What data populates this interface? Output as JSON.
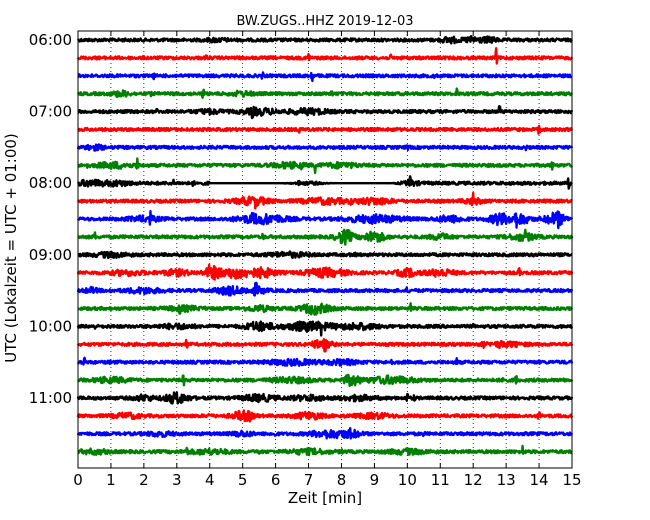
{
  "chart_data": {
    "type": "line",
    "title": "BW.ZUGS..HHZ 2019-12-03",
    "xlabel": "Zeit  [min]",
    "ylabel": "UTC (Lokalzeit = UTC + 01:00)",
    "xlim": [
      0,
      15
    ],
    "x_ticks": [
      0,
      1,
      2,
      3,
      4,
      5,
      6,
      7,
      8,
      9,
      10,
      11,
      12,
      13,
      14,
      15
    ],
    "y_tick_labels": [
      "06:00",
      "07:00",
      "08:00",
      "09:00",
      "10:00",
      "11:00"
    ],
    "grid": "vertical dotted at every minute",
    "colors": [
      "#000000",
      "#ff0000",
      "#0000ff",
      "#008000"
    ],
    "traces": [
      {
        "label": "06:00",
        "color": "#000000",
        "base": 0.06,
        "bursts": [
          [
            11.3,
            0.25,
            1.6
          ],
          [
            12.0,
            0.25,
            1.8
          ],
          [
            12.5,
            0.2,
            1.4
          ],
          [
            4.2,
            0.3,
            0.9
          ]
        ],
        "spikes": []
      },
      {
        "label": "06:15",
        "color": "#ff0000",
        "base": 0.05,
        "bursts": [],
        "spikes": [
          [
            7.0,
            5.0
          ],
          [
            12.7,
            5.5
          ],
          [
            3.9,
            1.5
          ],
          [
            9.5,
            1.2
          ]
        ]
      },
      {
        "label": "06:30",
        "color": "#0000ff",
        "base": 0.05,
        "bursts": [],
        "spikes": [
          [
            7.1,
            5.5
          ],
          [
            5.6,
            2.0
          ],
          [
            2.3,
            1.2
          ],
          [
            10.8,
            1.2
          ]
        ]
      },
      {
        "label": "06:45",
        "color": "#008000",
        "base": 0.06,
        "bursts": [
          [
            1.3,
            0.25,
            1.5
          ],
          [
            5.0,
            0.3,
            1.3
          ]
        ],
        "spikes": [
          [
            3.8,
            4.5
          ],
          [
            11.5,
            4.0
          ],
          [
            7.7,
            1.5
          ],
          [
            2.2,
            1.2
          ],
          [
            12.8,
            1.2
          ]
        ]
      },
      {
        "label": "07:00",
        "color": "#000000",
        "base": 0.07,
        "bursts": [
          [
            5.5,
            0.5,
            1.8
          ],
          [
            7.0,
            0.6,
            1.5
          ],
          [
            4.0,
            0.4,
            1.1
          ]
        ],
        "spikes": [
          [
            5.3,
            3.5
          ],
          [
            12.8,
            4.0
          ],
          [
            2.4,
            1.2
          ]
        ]
      },
      {
        "label": "07:15",
        "color": "#ff0000",
        "base": 0.05,
        "bursts": [],
        "spikes": [
          [
            6.7,
            3.0
          ],
          [
            14.0,
            4.5
          ],
          [
            9.6,
            1.2
          ]
        ]
      },
      {
        "label": "07:30",
        "color": "#0000ff",
        "base": 0.05,
        "bursts": [
          [
            0.5,
            0.3,
            1.2
          ]
        ],
        "spikes": [
          [
            10.0,
            1.8
          ],
          [
            4.1,
            1.2
          ],
          [
            13.6,
            1.2
          ]
        ]
      },
      {
        "label": "07:45",
        "color": "#008000",
        "base": 0.08,
        "bursts": [
          [
            1.1,
            0.5,
            1.6
          ],
          [
            6.4,
            0.5,
            1.4
          ],
          [
            8.0,
            0.5,
            1.3
          ]
        ],
        "spikes": [
          [
            1.8,
            4.0
          ],
          [
            6.8,
            3.0
          ],
          [
            7.2,
            4.0
          ],
          [
            14.4,
            4.5
          ],
          [
            0.3,
            1.6
          ]
        ]
      },
      {
        "label": "08:00",
        "color": "#000000",
        "base": 0.07,
        "bursts": [
          [
            0.4,
            0.4,
            1.6
          ],
          [
            1.2,
            0.4,
            1.3
          ],
          [
            7.0,
            0.5,
            1.2
          ],
          [
            10.0,
            0.3,
            1.5
          ]
        ],
        "spikes": [
          [
            10.1,
            4.8
          ],
          [
            14.9,
            3.5
          ],
          [
            3.5,
            1.5
          ],
          [
            6.7,
            1.6
          ],
          [
            2.9,
            1.3
          ]
        ],
        "gaps": [
          [
            4.0,
            10.0
          ]
        ]
      },
      {
        "label": "08:15",
        "color": "#ff0000",
        "base": 0.09,
        "bursts": [
          [
            5.3,
            0.5,
            2.2
          ],
          [
            7.5,
            0.7,
            1.6
          ],
          [
            9.0,
            0.5,
            1.8
          ],
          [
            12.0,
            0.3,
            1.5
          ]
        ],
        "spikes": [
          [
            12.0,
            3.8
          ],
          [
            5.4,
            3.0
          ],
          [
            8.3,
            1.5
          ]
        ]
      },
      {
        "label": "08:30",
        "color": "#0000ff",
        "base": 0.12,
        "bursts": [
          [
            5.6,
            0.7,
            2.8
          ],
          [
            9.0,
            0.8,
            2.2
          ],
          [
            12.8,
            0.3,
            3.0
          ],
          [
            13.4,
            0.3,
            3.2
          ],
          [
            14.5,
            0.3,
            3.8
          ],
          [
            2.0,
            0.5,
            1.4
          ],
          [
            11.3,
            0.4,
            1.8
          ]
        ],
        "spikes": [
          [
            2.2,
            4.2
          ],
          [
            14.6,
            3.8
          ],
          [
            12.7,
            3.0
          ],
          [
            13.3,
            3.0
          ],
          [
            5.3,
            2.5
          ]
        ]
      },
      {
        "label": "08:45",
        "color": "#008000",
        "base": 0.07,
        "bursts": [
          [
            8.1,
            0.25,
            4.2
          ],
          [
            9.0,
            0.3,
            3.2
          ],
          [
            11.0,
            0.3,
            1.6
          ],
          [
            13.5,
            0.4,
            2.0
          ]
        ],
        "spikes": [
          [
            0.5,
            3.5
          ],
          [
            5.6,
            4.5
          ],
          [
            13.6,
            3.0
          ]
        ]
      },
      {
        "label": "09:00",
        "color": "#000000",
        "base": 0.06,
        "bursts": [
          [
            1.0,
            0.5,
            1.2
          ],
          [
            6.4,
            0.6,
            1.2
          ]
        ],
        "spikes": [
          [
            8.4,
            5.0
          ],
          [
            4.4,
            1.2
          ]
        ]
      },
      {
        "label": "09:15",
        "color": "#ff0000",
        "base": 0.12,
        "bursts": [
          [
            4.1,
            0.25,
            3.5
          ],
          [
            4.8,
            0.4,
            3.2
          ],
          [
            5.6,
            0.4,
            2.6
          ],
          [
            7.5,
            0.6,
            2.4
          ],
          [
            10.0,
            0.3,
            2.2
          ],
          [
            11.0,
            0.4,
            2.0
          ],
          [
            3.0,
            0.4,
            1.6
          ],
          [
            1.5,
            0.5,
            1.4
          ]
        ],
        "spikes": [
          [
            8.4,
            5.0
          ],
          [
            13.4,
            4.0
          ],
          [
            4.0,
            2.5
          ]
        ]
      },
      {
        "label": "09:30",
        "color": "#0000ff",
        "base": 0.07,
        "bursts": [
          [
            4.6,
            0.4,
            2.3
          ],
          [
            5.4,
            0.3,
            2.0
          ],
          [
            2.0,
            0.5,
            1.5
          ],
          [
            0.4,
            0.2,
            1.4
          ]
        ],
        "spikes": [
          [
            5.4,
            3.5
          ],
          [
            10.0,
            2.0
          ],
          [
            1.0,
            1.3
          ]
        ]
      },
      {
        "label": "09:45",
        "color": "#008000",
        "base": 0.07,
        "bursts": [
          [
            7.2,
            0.4,
            3.2
          ],
          [
            5.5,
            0.4,
            1.5
          ],
          [
            3.2,
            0.5,
            1.2
          ]
        ],
        "spikes": [
          [
            3.1,
            3.0
          ],
          [
            10.1,
            2.5
          ]
        ]
      },
      {
        "label": "10:00",
        "color": "#000000",
        "base": 0.07,
        "bursts": [
          [
            5.5,
            0.4,
            2.5
          ],
          [
            7.0,
            0.7,
            2.6
          ],
          [
            3.0,
            0.5,
            1.2
          ],
          [
            8.5,
            0.6,
            1.6
          ]
        ],
        "spikes": [
          [
            7.4,
            4.8
          ],
          [
            0.5,
            1.3
          ],
          [
            12.0,
            1.3
          ]
        ]
      },
      {
        "label": "10:15",
        "color": "#ff0000",
        "base": 0.06,
        "bursts": [
          [
            7.4,
            0.3,
            2.4
          ],
          [
            13.0,
            0.5,
            1.3
          ]
        ],
        "spikes": [
          [
            3.3,
            3.0
          ],
          [
            7.5,
            2.5
          ],
          [
            12.3,
            2.5
          ],
          [
            12.8,
            2.0
          ]
        ]
      },
      {
        "label": "10:30",
        "color": "#0000ff",
        "base": 0.06,
        "bursts": [
          [
            6.5,
            0.7,
            1.5
          ],
          [
            8.0,
            0.5,
            1.3
          ]
        ],
        "spikes": [
          [
            0.2,
            3.8
          ],
          [
            9.5,
            3.2
          ],
          [
            11.5,
            2.5
          ],
          [
            1.0,
            1.3
          ]
        ]
      },
      {
        "label": "10:45",
        "color": "#008000",
        "base": 0.08,
        "bursts": [
          [
            8.3,
            0.25,
            3.0
          ],
          [
            9.5,
            0.7,
            2.0
          ],
          [
            6.5,
            0.6,
            1.4
          ],
          [
            1.0,
            0.5,
            1.4
          ]
        ],
        "spikes": [
          [
            3.2,
            3.8
          ],
          [
            12.9,
            3.2
          ],
          [
            13.3,
            3.8
          ]
        ]
      },
      {
        "label": "11:00",
        "color": "#000000",
        "base": 0.08,
        "bursts": [
          [
            3.0,
            0.35,
            3.2
          ],
          [
            2.0,
            0.3,
            1.6
          ],
          [
            5.5,
            0.5,
            1.8
          ],
          [
            7.0,
            0.5,
            1.4
          ],
          [
            8.5,
            0.5,
            1.3
          ]
        ],
        "spikes": [
          [
            8.5,
            3.5
          ],
          [
            10.0,
            3.0
          ],
          [
            10.2,
            1.8
          ]
        ]
      },
      {
        "label": "11:15",
        "color": "#ff0000",
        "base": 0.07,
        "bursts": [
          [
            5.0,
            0.3,
            2.8
          ],
          [
            7.0,
            0.4,
            2.0
          ],
          [
            1.5,
            0.4,
            1.4
          ],
          [
            9.0,
            0.5,
            1.3
          ]
        ],
        "spikes": [
          [
            4.0,
            4.0
          ],
          [
            14.0,
            4.5
          ],
          [
            5.2,
            2.0
          ]
        ]
      },
      {
        "label": "11:30",
        "color": "#0000ff",
        "base": 0.07,
        "bursts": [
          [
            7.6,
            0.5,
            2.2
          ],
          [
            5.0,
            0.3,
            1.4
          ],
          [
            8.3,
            0.3,
            1.8
          ],
          [
            2.5,
            0.4,
            1.2
          ]
        ],
        "spikes": [
          [
            8.3,
            4.0
          ],
          [
            6.0,
            1.4
          ],
          [
            10.5,
            1.3
          ]
        ]
      },
      {
        "label": "11:45",
        "color": "#008000",
        "base": 0.07,
        "bursts": [
          [
            4.0,
            0.6,
            1.3
          ],
          [
            7.0,
            0.6,
            1.3
          ],
          [
            10.0,
            0.6,
            1.2
          ],
          [
            0.5,
            0.4,
            1.2
          ]
        ],
        "spikes": [
          [
            3.3,
            3.5
          ],
          [
            13.5,
            4.0
          ],
          [
            5.5,
            1.6
          ],
          [
            8.0,
            1.3
          ]
        ]
      }
    ]
  }
}
